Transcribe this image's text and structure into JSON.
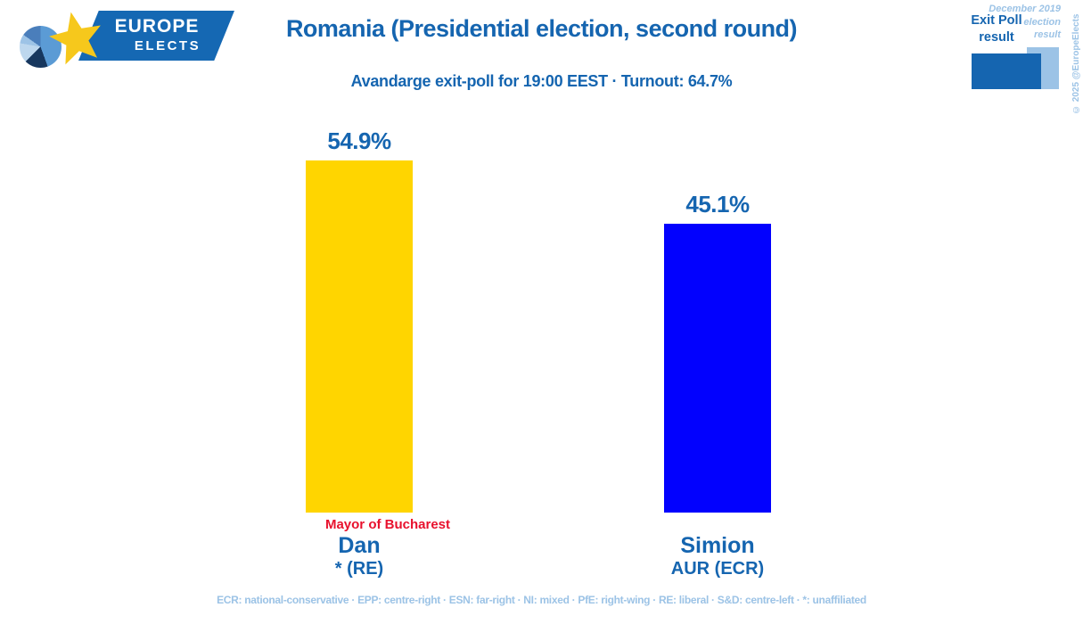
{
  "brand": {
    "logo_line1": "EUROPE",
    "logo_line2": "ELECTS",
    "copyright": "© 2025 @EuropeElects"
  },
  "header": {
    "title": "Romania (Presidential election, second round)",
    "subtitle": "Avandarge exit-poll for 19:00 EEST · Turnout: 64.7%"
  },
  "legend": {
    "exit_poll_line1": "Exit Poll",
    "exit_poll_line2": "result",
    "election_line1": "December 2019",
    "election_line2": "election",
    "election_line3": "result",
    "exit_poll_color": "#1565B0",
    "election_color": "#9CC3E6"
  },
  "chart_data": {
    "type": "bar",
    "title": "Romania (Presidential election, second round)",
    "subtitle": "Avandarge exit-poll for 19:00 EEST · Turnout: 64.7%",
    "unit": "%",
    "ylim": [
      0,
      60
    ],
    "grid": false,
    "legend_position": "top-right",
    "categories": [
      "Dan * (RE)",
      "Simion AUR (ECR)"
    ],
    "values": [
      54.9,
      45.1
    ],
    "candidates": [
      {
        "name": "Dan",
        "party": "* (RE)",
        "note": "Mayor of Bucharest",
        "value": 54.9,
        "value_label": "54.9%",
        "color": "#FFD500"
      },
      {
        "name": "Simion",
        "party": "AUR (ECR)",
        "note": "",
        "value": 45.1,
        "value_label": "45.1%",
        "color": "#0201FE"
      }
    ]
  },
  "footer": {
    "party_key": "ECR: national-conservative · EPP: centre-right · ESN: far-right · NI: mixed · PfE: right-wing · RE: liberal · S&D: centre-left · *: unaffiliated"
  },
  "colors": {
    "dark_blue": "#1565B0",
    "light_blue": "#9CC3E6",
    "note_red": "#E8112D",
    "banner_blue": "#1568B3",
    "star_yellow": "#F6C81C",
    "bar_yellow": "#FFD500",
    "bar_blue": "#0201FE"
  }
}
